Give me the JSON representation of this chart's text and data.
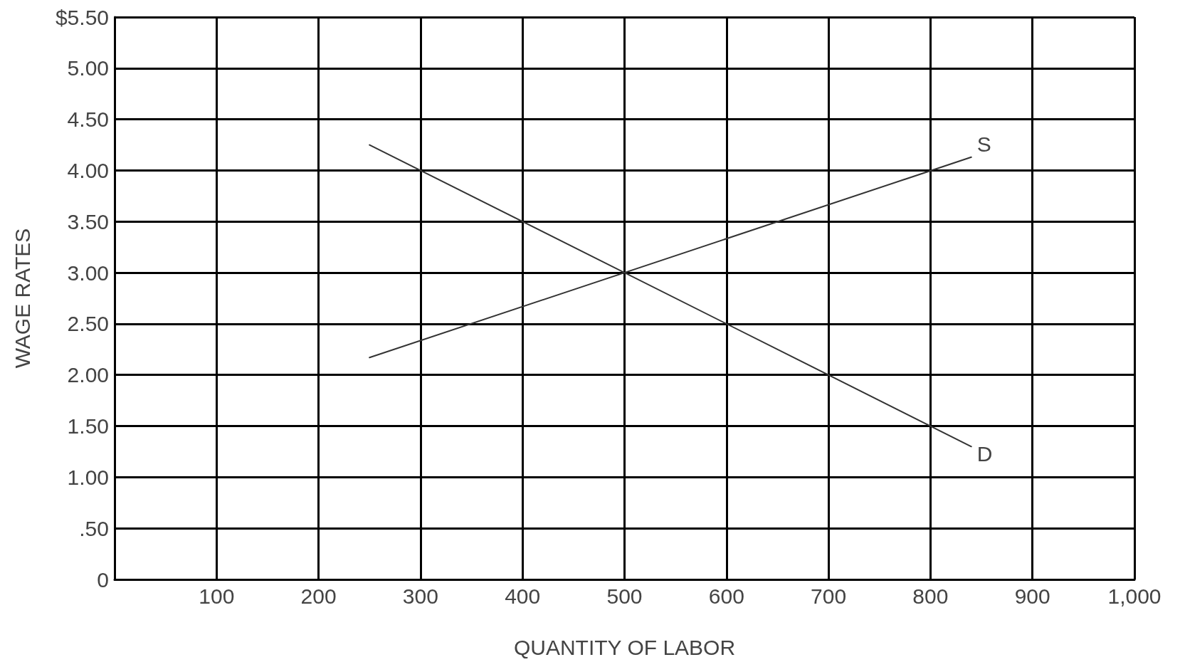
{
  "chart_data": {
    "type": "line",
    "xlabel": "QUANTITY OF LABOR",
    "ylabel": "WAGE RATES",
    "xlim": [
      0,
      1000
    ],
    "xticks": [
      {
        "value": 0,
        "label": null
      },
      100,
      200,
      300,
      400,
      500,
      600,
      700,
      800,
      900,
      {
        "value": 1000,
        "label": "1,000"
      }
    ],
    "ylim": [
      0,
      5.5
    ],
    "yticks": [
      0,
      {
        "value": 0.5,
        "label": ".50"
      },
      {
        "value": 1,
        "label": "1.00"
      },
      {
        "value": 1.5,
        "label": "1.50"
      },
      {
        "value": 2,
        "label": "2.00"
      },
      {
        "value": 2.5,
        "label": "2.50"
      },
      {
        "value": 3,
        "label": "3.00"
      },
      {
        "value": 3.5,
        "label": "3.50"
      },
      {
        "value": 4,
        "label": "4.00"
      },
      {
        "value": 4.5,
        "label": "4.50"
      },
      {
        "value": 5,
        "label": "5.00"
      },
      {
        "value": 5.5,
        "label": "$5.50"
      }
    ],
    "x": [
      250,
      840
    ],
    "grid": true,
    "marker": "none",
    "line_style": "solid",
    "legend": false,
    "series": [
      {
        "name": "S",
        "color": "#333333",
        "values": [
          2.17,
          4.13
        ]
      },
      {
        "name": "D",
        "color": "#333333",
        "values": [
          4.25,
          1.3
        ]
      }
    ]
  }
}
